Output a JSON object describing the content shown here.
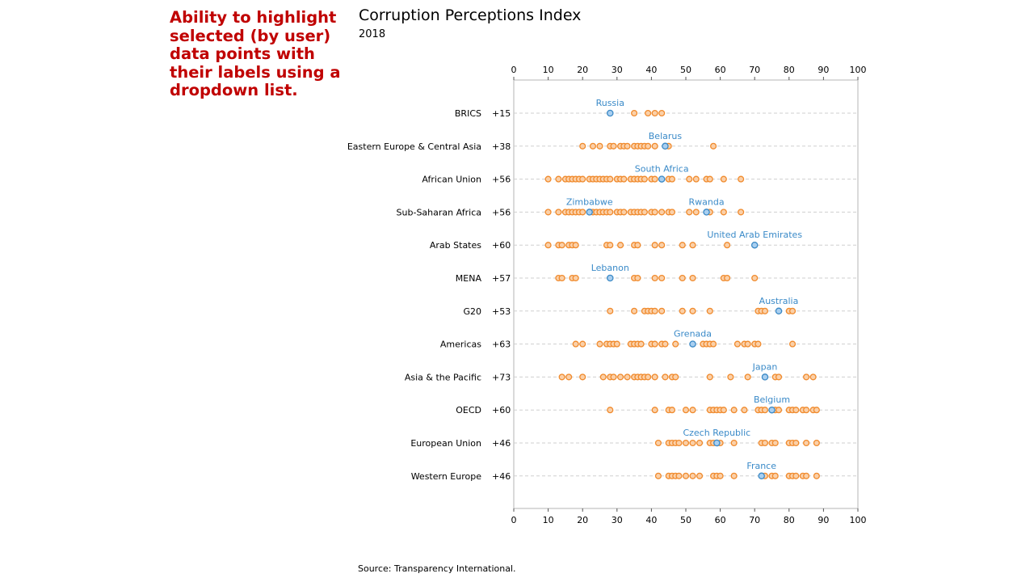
{
  "note": "Ability to highlight selected (by user) data points with their labels using a dropdown list.",
  "source": "Source: Transparency International.",
  "chart_data": {
    "type": "scatter",
    "title": "Corruption Perceptions Index",
    "subtitle": "2018",
    "xlim": [
      0,
      100
    ],
    "x_ticks": [
      0,
      10,
      20,
      30,
      40,
      50,
      60,
      70,
      80,
      90,
      100
    ],
    "grid": "dashed horizontal row guides",
    "colors": {
      "points": "#f08a2c",
      "highlight": "#3a8ac8",
      "guide": "#cfcfcf",
      "frame": "#b5b5b5"
    },
    "rows": [
      {
        "label": "BRICS",
        "count": "+15",
        "values": [
          28,
          35,
          39,
          41,
          43
        ],
        "highlights": [
          {
            "name": "Russia",
            "value": 28
          }
        ]
      },
      {
        "label": "Eastern Europe & Central Asia",
        "count": "+38",
        "values": [
          20,
          23,
          25,
          28,
          29,
          31,
          32,
          33,
          35,
          36,
          37,
          38,
          39,
          41,
          44,
          45,
          58
        ],
        "highlights": [
          {
            "name": "Belarus",
            "value": 44
          }
        ]
      },
      {
        "label": "African Union",
        "count": "+56",
        "values": [
          10,
          13,
          15,
          16,
          17,
          18,
          19,
          20,
          22,
          23,
          24,
          25,
          26,
          27,
          28,
          30,
          31,
          32,
          34,
          35,
          36,
          37,
          38,
          40,
          41,
          43,
          45,
          46,
          51,
          53,
          56,
          57,
          61,
          66
        ],
        "highlights": [
          {
            "name": "South Africa",
            "value": 43
          }
        ]
      },
      {
        "label": "Sub-Saharan Africa",
        "count": "+56",
        "values": [
          10,
          13,
          15,
          16,
          17,
          18,
          19,
          20,
          22,
          23,
          24,
          25,
          26,
          27,
          28,
          30,
          31,
          32,
          34,
          35,
          36,
          37,
          38,
          40,
          41,
          43,
          45,
          46,
          51,
          53,
          56,
          57,
          61,
          66
        ],
        "highlights": [
          {
            "name": "Zimbabwe",
            "value": 22
          },
          {
            "name": "Rwanda",
            "value": 56
          }
        ]
      },
      {
        "label": "Arab States",
        "count": "+60",
        "values": [
          10,
          13,
          14,
          16,
          17,
          18,
          27,
          28,
          31,
          35,
          36,
          41,
          43,
          49,
          52,
          62,
          70
        ],
        "highlights": [
          {
            "name": "United Arab Emirates",
            "value": 70
          }
        ]
      },
      {
        "label": "MENA",
        "count": "+57",
        "values": [
          13,
          14,
          17,
          18,
          28,
          35,
          36,
          41,
          43,
          49,
          52,
          61,
          62,
          70
        ],
        "highlights": [
          {
            "name": "Lebanon",
            "value": 28
          }
        ]
      },
      {
        "label": "G20",
        "count": "+53",
        "values": [
          28,
          35,
          38,
          39,
          40,
          41,
          43,
          49,
          52,
          57,
          71,
          72,
          73,
          77,
          80,
          81
        ],
        "highlights": [
          {
            "name": "Australia",
            "value": 77
          }
        ]
      },
      {
        "label": "Americas",
        "count": "+63",
        "values": [
          18,
          20,
          25,
          27,
          28,
          29,
          30,
          34,
          35,
          36,
          37,
          40,
          41,
          43,
          44,
          47,
          52,
          55,
          56,
          57,
          58,
          65,
          67,
          68,
          70,
          71,
          81
        ],
        "highlights": [
          {
            "name": "Grenada",
            "value": 52
          }
        ]
      },
      {
        "label": "Asia & the Pacific",
        "count": "+73",
        "values": [
          14,
          16,
          20,
          26,
          28,
          29,
          31,
          33,
          35,
          36,
          37,
          38,
          39,
          41,
          44,
          46,
          47,
          57,
          63,
          68,
          73,
          76,
          77,
          85,
          87
        ],
        "highlights": [
          {
            "name": "Japan",
            "value": 73
          }
        ]
      },
      {
        "label": "OECD",
        "count": "+60",
        "values": [
          28,
          41,
          45,
          46,
          50,
          52,
          57,
          58,
          59,
          60,
          61,
          64,
          67,
          71,
          72,
          73,
          75,
          76,
          77,
          80,
          81,
          82,
          84,
          85,
          87,
          88
        ],
        "highlights": [
          {
            "name": "Belgium",
            "value": 75
          }
        ]
      },
      {
        "label": "European Union",
        "count": "+46",
        "values": [
          42,
          45,
          46,
          47,
          48,
          50,
          52,
          54,
          57,
          58,
          59,
          60,
          64,
          72,
          73,
          75,
          76,
          80,
          81,
          82,
          85,
          88
        ],
        "highlights": [
          {
            "name": "Czech Republic",
            "value": 59
          }
        ]
      },
      {
        "label": "Western Europe",
        "count": "+46",
        "values": [
          42,
          45,
          46,
          47,
          48,
          50,
          52,
          54,
          58,
          59,
          60,
          64,
          72,
          73,
          75,
          76,
          80,
          81,
          82,
          84,
          85,
          88
        ],
        "highlights": [
          {
            "name": "France",
            "value": 72
          }
        ]
      }
    ]
  }
}
